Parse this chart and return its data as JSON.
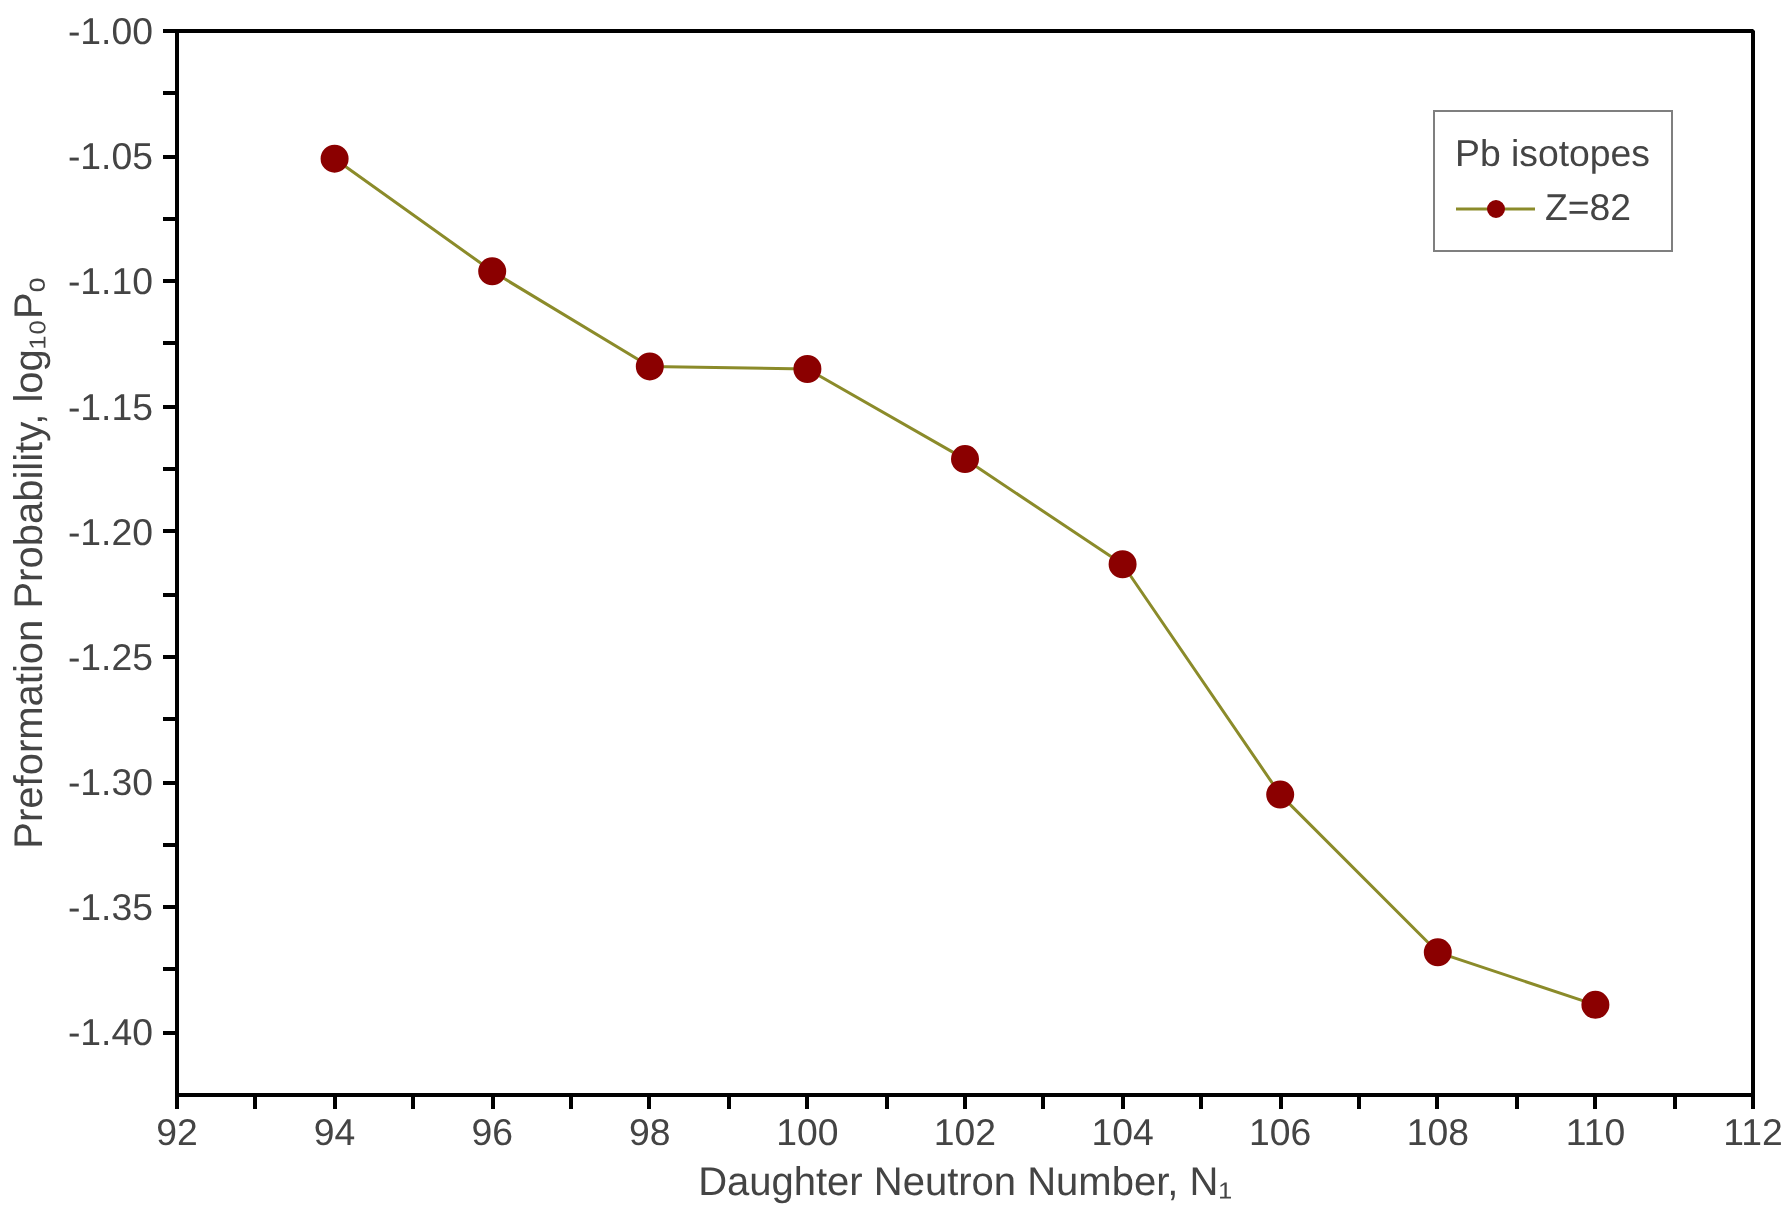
{
  "chart_data": {
    "type": "line",
    "xlabel": "Daughter Neutron Number, N₁",
    "ylabel": "Preformation Probability, log₁₀Pₒ",
    "legend_title": "Pb isotopes",
    "x": [
      94,
      96,
      98,
      100,
      102,
      104,
      106,
      108,
      110
    ],
    "series": [
      {
        "name": "Z=82",
        "color": "#8b8b2a",
        "colors": [
          "#8b0000",
          "#8b0000",
          "#8b0000",
          "#8b0000",
          "#8b0000",
          "#8b0000",
          "#8b0000",
          "#8b0000",
          "#8b0000"
        ],
        "values": [
          -1.051,
          -1.096,
          -1.134,
          -1.135,
          -1.171,
          -1.213,
          -1.305,
          -1.368,
          -1.389
        ]
      }
    ],
    "xlim": [
      92,
      112
    ],
    "xticks": [
      92,
      {
        "value": 93,
        "label": null
      },
      94,
      {
        "value": 95,
        "label": null
      },
      96,
      {
        "value": 97,
        "label": null
      },
      98,
      {
        "value": 99,
        "label": null
      },
      100,
      {
        "value": 101,
        "label": null
      },
      102,
      {
        "value": 103,
        "label": null
      },
      104,
      {
        "value": 105,
        "label": null
      },
      106,
      {
        "value": 107,
        "label": null
      },
      108,
      {
        "value": 109,
        "label": null
      },
      110,
      {
        "value": 111,
        "label": null
      },
      112
    ],
    "ylim": [
      -1.425,
      -1.0
    ],
    "yticks": [
      {
        "value": -1.0,
        "label": "-1.00"
      },
      {
        "value": -1.025,
        "label": null
      },
      {
        "value": -1.05,
        "label": "-1.05"
      },
      {
        "value": -1.075,
        "label": null
      },
      {
        "value": -1.1,
        "label": "-1.10"
      },
      {
        "value": -1.125,
        "label": null
      },
      {
        "value": -1.15,
        "label": "-1.15"
      },
      {
        "value": -1.175,
        "label": null
      },
      {
        "value": -1.2,
        "label": "-1.20"
      },
      {
        "value": -1.225,
        "label": null
      },
      {
        "value": -1.25,
        "label": "-1.25"
      },
      {
        "value": -1.275,
        "label": null
      },
      {
        "value": -1.3,
        "label": "-1.30"
      },
      {
        "value": -1.325,
        "label": null
      },
      {
        "value": -1.35,
        "label": "-1.35"
      },
      {
        "value": -1.375,
        "label": null
      },
      {
        "value": -1.4,
        "label": "-1.40"
      }
    ],
    "grid": false,
    "legend": "top right",
    "marker": "circle",
    "line_style": "solid"
  }
}
